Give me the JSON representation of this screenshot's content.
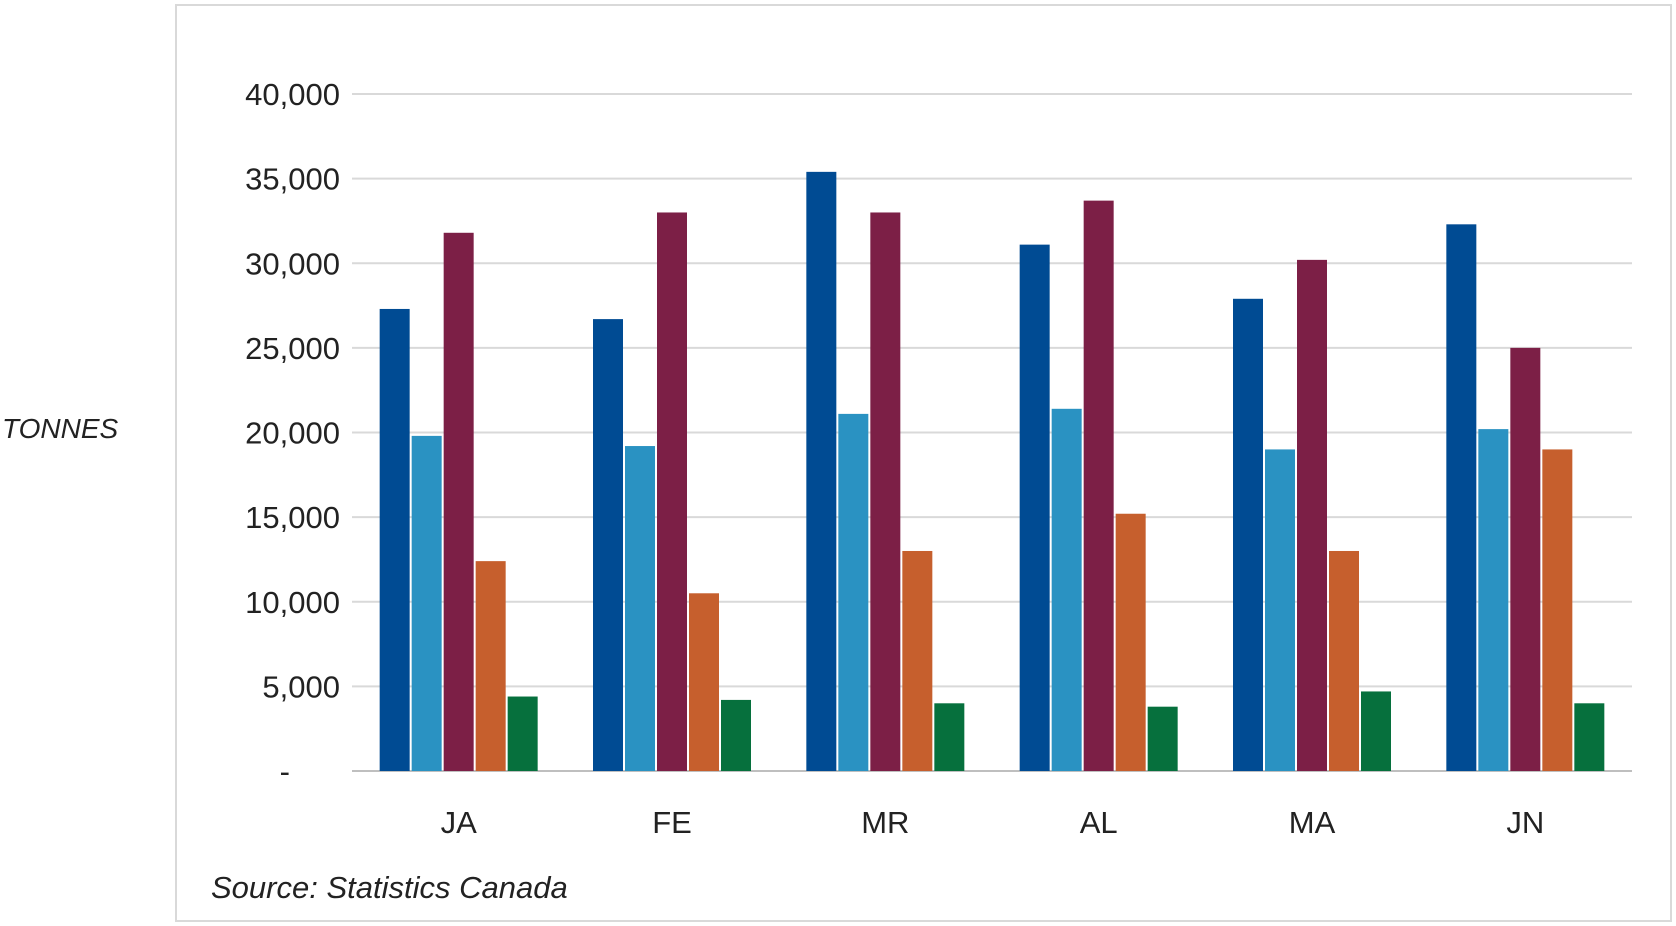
{
  "chart_data": {
    "type": "bar",
    "title": "",
    "xlabel": "",
    "ylabel": "TONNES",
    "categories": [
      "JA",
      "FE",
      "MR",
      "AL",
      "MA",
      "JN"
    ],
    "ylim": [
      0,
      40000
    ],
    "yticks": [
      0,
      5000,
      10000,
      15000,
      20000,
      25000,
      30000,
      35000,
      40000
    ],
    "ytick_labels": [
      "-",
      "5,000",
      "10,000",
      "15,000",
      "20,000",
      "25,000",
      "30,000",
      "35,000",
      "40,000"
    ],
    "grid": true,
    "legend": "none",
    "series": [
      {
        "color": "#004b93",
        "values": [
          27300,
          26700,
          35400,
          31100,
          27900,
          32300
        ]
      },
      {
        "color": "#2a92c2",
        "values": [
          19800,
          19200,
          21100,
          21400,
          19000,
          20200
        ]
      },
      {
        "color": "#7c1f46",
        "values": [
          31800,
          33000,
          33000,
          33700,
          30200,
          25000
        ]
      },
      {
        "color": "#c65f2d",
        "values": [
          12400,
          10500,
          13000,
          15200,
          13000,
          19000
        ]
      },
      {
        "color": "#06703d",
        "values": [
          4400,
          4200,
          4000,
          3800,
          4700,
          4000
        ]
      }
    ],
    "source": "Source: Statistics Canada"
  }
}
